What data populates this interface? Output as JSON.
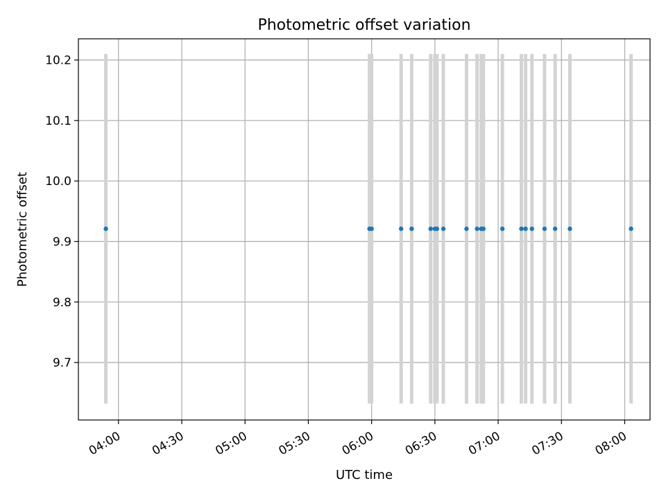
{
  "chart_data": {
    "type": "scatter",
    "title": "Photometric offset variation",
    "xlabel": "UTC time",
    "ylabel": "Photometric offset",
    "x_type": "time",
    "xlim": [
      "03:41",
      "08:12"
    ],
    "ylim": [
      9.605,
      10.235
    ],
    "x_ticks": [
      "04:00",
      "04:30",
      "05:00",
      "05:30",
      "06:00",
      "06:30",
      "07:00",
      "07:30",
      "08:00"
    ],
    "y_ticks": [
      9.7,
      9.8,
      9.9,
      10.0,
      10.1,
      10.2
    ],
    "grid": true,
    "legend": "none",
    "series": [
      {
        "x": [
          "03:54",
          "05:59",
          "06:00",
          "06:14",
          "06:19",
          "06:28",
          "06:30",
          "06:31",
          "06:34",
          "06:45",
          "06:50",
          "06:52",
          "06:53",
          "07:02",
          "07:11",
          "07:13",
          "07:16",
          "07:22",
          "07:27",
          "07:34",
          "08:03"
        ],
        "y": [
          9.921,
          9.921,
          9.921,
          9.921,
          9.921,
          9.921,
          9.921,
          9.921,
          9.921,
          9.921,
          9.921,
          9.921,
          9.921,
          9.921,
          9.921,
          9.921,
          9.921,
          9.921,
          9.921,
          9.921,
          9.921
        ],
        "error_low": [
          9.632,
          9.632,
          9.632,
          9.632,
          9.632,
          9.632,
          9.632,
          9.632,
          9.632,
          9.632,
          9.632,
          9.632,
          9.632,
          9.632,
          9.632,
          9.632,
          9.632,
          9.632,
          9.632,
          9.632,
          9.632
        ],
        "error_high": [
          10.21,
          10.21,
          10.21,
          10.21,
          10.21,
          10.21,
          10.21,
          10.21,
          10.21,
          10.21,
          10.21,
          10.21,
          10.21,
          10.21,
          10.21,
          10.21,
          10.21,
          10.21,
          10.21,
          10.21,
          10.21
        ],
        "color": "#1f77b4",
        "error_color": "#d3d3d3"
      }
    ]
  }
}
